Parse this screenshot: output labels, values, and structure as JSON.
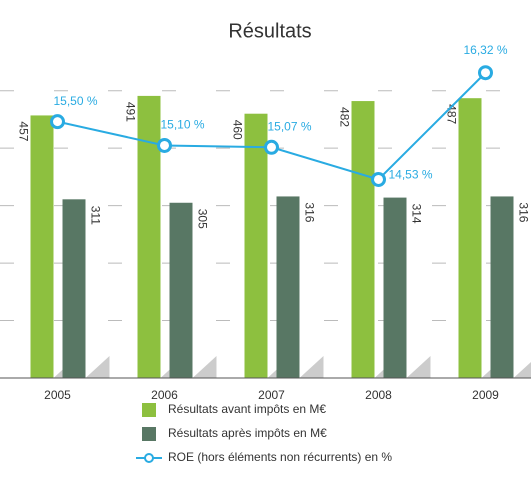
{
  "chart_data": {
    "type": "bar_line",
    "title": "Résultats",
    "categories": [
      "2005",
      "2006",
      "2007",
      "2008",
      "2009"
    ],
    "series": [
      {
        "name": "Résultats avant impôts en M€",
        "color": "#8dc03f",
        "values": [
          457,
          491,
          460,
          482,
          487
        ]
      },
      {
        "name": "Résultats après impôts en M€",
        "color": "#587764",
        "values": [
          311,
          305,
          316,
          314,
          316
        ]
      },
      {
        "name": "ROE (hors éléments non récurrents) en %",
        "color": "#29abe2",
        "axis": "y2",
        "type": "line",
        "values": [
          15.5,
          15.1,
          15.07,
          14.53,
          16.32
        ],
        "value_labels": [
          "15,50 %",
          "15,10 %",
          "15,07 %",
          "14,53 %",
          "16,32 %"
        ]
      }
    ],
    "ylim": [
      0,
      550
    ],
    "yticks": [
      100,
      200,
      300,
      400,
      500
    ],
    "grid": true,
    "y2lim": [
      11.2,
      16.5
    ],
    "legend": "bottom"
  }
}
